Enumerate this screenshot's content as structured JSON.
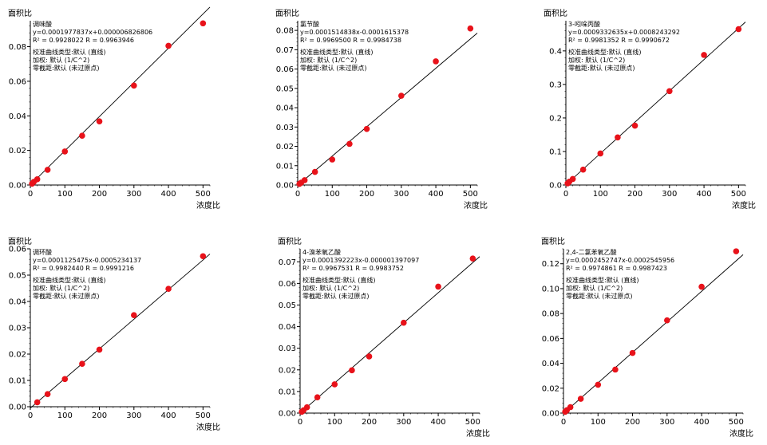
{
  "chart_data": [
    {
      "type": "scatter",
      "title": "调味酸",
      "ylabel": "面积比",
      "xlabel": "浓度比",
      "xlim": [
        0,
        520
      ],
      "ylim": [
        0,
        0.095
      ],
      "xticks": [
        "0",
        "100",
        "200",
        "300",
        "400",
        "500"
      ],
      "yticks": [
        "0.00",
        "0.02",
        "0.04",
        "0.06",
        "0.08"
      ],
      "ytick_values": [
        0,
        0.02,
        0.04,
        0.06,
        0.08
      ],
      "annotations": [
        "y=0.0001977837x+0.000006826806",
        "R² = 0.9928022    R = 0.9963946",
        "校准曲线类型:默认 (直线)",
        "加权: 默认 (1/C^2)",
        "零截距:默认 (未过原点)"
      ],
      "fit": {
        "slope": 0.0001977837,
        "intercept": 6.826806e-06
      },
      "series": [
        {
          "x": [
            5,
            10,
            20,
            50,
            100,
            150,
            200,
            300,
            400,
            500
          ],
          "y": [
            0.0008,
            0.0018,
            0.0033,
            0.0088,
            0.0194,
            0.0285,
            0.0368,
            0.0575,
            0.0805,
            0.0935
          ],
          "color": "#e8121a"
        }
      ]
    },
    {
      "type": "scatter",
      "title": "氯节酸",
      "ylabel": "面积比",
      "xlabel": "浓度比",
      "xlim": [
        0,
        520
      ],
      "ylim": [
        0,
        0.085
      ],
      "xticks": [
        "0",
        "100",
        "200",
        "300",
        "400",
        "500"
      ],
      "yticks": [
        "0.00",
        "0.01",
        "0.02",
        "0.03",
        "0.04",
        "0.05",
        "0.06",
        "0.07",
        "0.08"
      ],
      "ytick_values": [
        0,
        0.01,
        0.02,
        0.03,
        0.04,
        0.05,
        0.06,
        0.07,
        0.08
      ],
      "annotations": [
        "y=0.0001514838x-0.0001615378",
        "R² = 0.9969500    R = 0.9984738",
        "校准曲线类型:默认 (直线)",
        "加权: 默认 (1/C^2)",
        "零截距:默认 (未过原点)"
      ],
      "fit": {
        "slope": 0.0001514838,
        "intercept": -0.0001615378
      },
      "series": [
        {
          "x": [
            5,
            10,
            20,
            50,
            100,
            150,
            200,
            300,
            400,
            500
          ],
          "y": [
            0.0006,
            0.0012,
            0.0025,
            0.0068,
            0.0132,
            0.0213,
            0.029,
            0.0462,
            0.064,
            0.081
          ],
          "color": "#e8121a"
        }
      ]
    },
    {
      "type": "scatter",
      "title": "3-吲哚丙酸",
      "ylabel": "面积比",
      "xlabel": "浓度比",
      "xlim": [
        0,
        520
      ],
      "ylim": [
        0,
        0.49
      ],
      "xticks": [
        "0",
        "100",
        "200",
        "300",
        "400",
        "500"
      ],
      "yticks": [
        "0.0",
        "0.1",
        "0.2",
        "0.3",
        "0.4"
      ],
      "ytick_values": [
        0,
        0.1,
        0.2,
        0.3,
        0.4
      ],
      "annotations": [
        "y=0.0009332635x+0.0008243292",
        "R² = 0.9981352    R = 0.9990672",
        "校准曲线类型:默认 (直线)",
        "加权: 默认 (1/C^2)",
        "零截距:默认 (未过原点)"
      ],
      "fit": {
        "slope": 0.0009332635,
        "intercept": 0.0008243292
      },
      "series": [
        {
          "x": [
            5,
            10,
            20,
            50,
            100,
            150,
            200,
            300,
            400,
            500
          ],
          "y": [
            0.005,
            0.01,
            0.018,
            0.046,
            0.094,
            0.142,
            0.177,
            0.28,
            0.388,
            0.465
          ],
          "color": "#e8121a"
        }
      ]
    },
    {
      "type": "scatter",
      "title": "调环酸",
      "ylabel": "面积比",
      "xlabel": "浓度比",
      "xlim": [
        0,
        520
      ],
      "ylim": [
        0,
        0.06
      ],
      "xticks": [
        "0",
        "100",
        "200",
        "300",
        "400",
        "500"
      ],
      "yticks": [
        "0.00",
        "0.01",
        "0.02",
        "0.03",
        "0.04",
        "0.05",
        "0.06"
      ],
      "ytick_values": [
        0,
        0.01,
        0.02,
        0.03,
        0.04,
        0.05,
        0.06
      ],
      "annotations": [
        "y=0.0001125475x-0.0005234137",
        "R² = 0.9982440    R = 0.9991216",
        "校准曲线类型:默认 (直线)",
        "加权: 默认 (1/C^2)",
        "零截距:默认 (未过原点)"
      ],
      "fit": {
        "slope": 0.0001125475,
        "intercept": -0.0005234137
      },
      "series": [
        {
          "x": [
            20,
            50,
            100,
            150,
            200,
            300,
            400,
            500
          ],
          "y": [
            0.0017,
            0.0048,
            0.0105,
            0.0163,
            0.0217,
            0.0348,
            0.0448,
            0.0572
          ],
          "color": "#e8121a"
        }
      ]
    },
    {
      "type": "scatter",
      "title": "4-溴苯氧乙酸",
      "ylabel": "面积比",
      "xlabel": "浓度比",
      "xlim": [
        0,
        520
      ],
      "ylim": [
        0,
        0.076
      ],
      "xticks": [
        "0",
        "100",
        "200",
        "300",
        "400",
        "500"
      ],
      "yticks": [
        "0.00",
        "0.01",
        "0.02",
        "0.03",
        "0.04",
        "0.05",
        "0.06",
        "0.07"
      ],
      "ytick_values": [
        0,
        0.01,
        0.02,
        0.03,
        0.04,
        0.05,
        0.06,
        0.07
      ],
      "annotations": [
        "y=0.0001392223x-0.000001397097",
        "R² = 0.9967531    R = 0.9983752",
        "校准曲线类型:默认 (直线)",
        "加权: 默认 (1/C^2)",
        "零截距:默认 (未过原点)"
      ],
      "fit": {
        "slope": 0.0001392223,
        "intercept": -1.397097e-06
      },
      "series": [
        {
          "x": [
            5,
            10,
            20,
            50,
            100,
            150,
            200,
            300,
            400,
            500
          ],
          "y": [
            0.0006,
            0.0013,
            0.0027,
            0.0073,
            0.0133,
            0.0198,
            0.0262,
            0.0418,
            0.0585,
            0.0715
          ],
          "color": "#e8121a"
        }
      ]
    },
    {
      "type": "scatter",
      "title": "2,4-二氯苯氧乙酸",
      "ylabel": "面积比",
      "xlabel": "浓度比",
      "xlim": [
        0,
        520
      ],
      "ylim": [
        0,
        0.132
      ],
      "xticks": [
        "0",
        "100",
        "200",
        "300",
        "400",
        "500"
      ],
      "yticks": [
        "0.00",
        "0.02",
        "0.04",
        "0.06",
        "0.08",
        "0.10",
        "0.12"
      ],
      "ytick_values": [
        0,
        0.02,
        0.04,
        0.06,
        0.08,
        0.1,
        0.12
      ],
      "annotations": [
        "y=0.0002452747x-0.0002545956",
        "R² = 0.9974861    R = 0.9987423",
        "校准曲线类型:默认 (直线)",
        "加权: 默认 (1/C^2)",
        "零截距:默认 (未过原点)"
      ],
      "fit": {
        "slope": 0.0002452747,
        "intercept": -0.0002545956
      },
      "series": [
        {
          "x": [
            5,
            10,
            20,
            50,
            100,
            150,
            200,
            300,
            400,
            500
          ],
          "y": [
            0.0011,
            0.0024,
            0.0048,
            0.0115,
            0.0228,
            0.035,
            0.0483,
            0.0745,
            0.1015,
            0.13
          ],
          "color": "#e8121a"
        }
      ]
    }
  ]
}
